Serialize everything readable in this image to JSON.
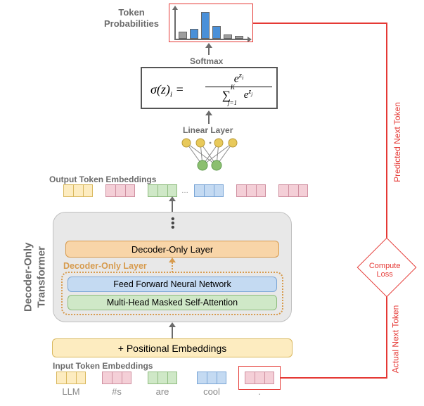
{
  "title_top": "Token",
  "title_bottom": "Probabilities",
  "softmax_label": "Softmax",
  "softmax_formula_left": "σ(z)",
  "softmax_formula_sub": "i",
  "softmax_formula_eq": " = ",
  "softmax_numer_a": "e",
  "softmax_numer_exp": "z",
  "softmax_numer_exp2": "i",
  "softmax_denom_sum": "∑",
  "softmax_denom_lo1": "j",
  "softmax_denom_lo2": "=1",
  "softmax_denom_hi": "K",
  "softmax_denom_e": "e",
  "softmax_denom_exp": "z",
  "softmax_denom_exp2": "j",
  "linear_label": "Linear Layer",
  "output_emb_label": "Output Token Embeddings",
  "transformer_side_label": "Decoder-Only\nTransformer",
  "decoder_layer_label": "Decoder-Only Layer",
  "decoder_layer_caption": "Decoder-Only Layer",
  "ffn_label": "Feed Forward Neural Network",
  "attention_label": "Multi-Head Masked Self-Attention",
  "pos_emb_label": "+ Positional Embeddings",
  "input_emb_label": "Input Token Embeddings",
  "tokens": [
    "LLM",
    "#s",
    "are",
    "cool",
    "."
  ],
  "right_label_pred": "Predicted Next Token",
  "right_label_actual": "Actual Next Token",
  "diamond_label": "Compute Loss",
  "colors": {
    "yellow": "#fdecc0",
    "yellow_border": "#d9b85e",
    "pink": "#f4cfd7",
    "pink_border": "#cf8fa0",
    "green": "#cfe8c7",
    "green_border": "#8fbc7f",
    "blue": "#c4daf2",
    "blue_border": "#7ba6d6",
    "orange": "#f8d5a8",
    "orange_border": "#d79b4e",
    "transformer_bg": "#e8e8e8",
    "transformer_border": "#bfbfbf",
    "grey_text": "#6b6b6b",
    "red": "#e53935",
    "chart_blue": "#4a90d9",
    "chart_grey": "#9e9e9e",
    "node_yellow": "#e8c95a",
    "node_green": "#8bbf6f"
  },
  "chart": {
    "heights": [
      10,
      14,
      38,
      18,
      6,
      4
    ],
    "width": 12
  }
}
